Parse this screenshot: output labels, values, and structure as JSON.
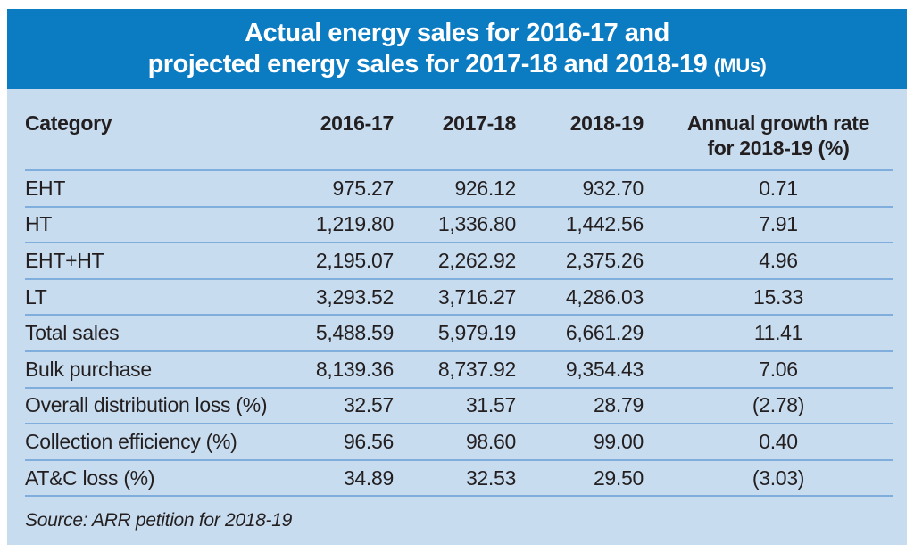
{
  "title": {
    "line1": "Actual energy sales for 2016-17 and",
    "line2": "projected energy sales for 2017-18 and 2018-19",
    "unit_suffix": "(MUs)"
  },
  "header": {
    "category": "Category",
    "y2016_17": "2016-17",
    "y2017_18": "2017-18",
    "y2018_19": "2018-19",
    "growth_line1": "Annual growth rate",
    "growth_line2": "for 2018-19 (%)"
  },
  "rows": [
    {
      "category": "EHT",
      "y2016_17": "975.27",
      "y2017_18": "926.12",
      "y2018_19": "932.70",
      "growth": "0.71"
    },
    {
      "category": "HT",
      "y2016_17": "1,219.80",
      "y2017_18": "1,336.80",
      "y2018_19": "1,442.56",
      "growth": "7.91"
    },
    {
      "category": "EHT+HT",
      "y2016_17": "2,195.07",
      "y2017_18": "2,262.92",
      "y2018_19": "2,375.26",
      "growth": "4.96"
    },
    {
      "category": "LT",
      "y2016_17": "3,293.52",
      "y2017_18": "3,716.27",
      "y2018_19": "4,286.03",
      "growth": "15.33"
    },
    {
      "category": "Total sales",
      "y2016_17": "5,488.59",
      "y2017_18": "5,979.19",
      "y2018_19": "6,661.29",
      "growth": "11.41"
    },
    {
      "category": "Bulk purchase",
      "y2016_17": "8,139.36",
      "y2017_18": "8,737.92",
      "y2018_19": "9,354.43",
      "growth": "7.06"
    },
    {
      "category": "Overall distribution loss (%)",
      "y2016_17": "32.57",
      "y2017_18": "31.57",
      "y2018_19": "28.79",
      "growth": "(2.78)"
    },
    {
      "category": "Collection efficiency (%)",
      "y2016_17": "96.56",
      "y2017_18": "98.60",
      "y2018_19": "99.00",
      "growth": "0.40"
    },
    {
      "category": "AT&C loss (%)",
      "y2016_17": "34.89",
      "y2017_18": "32.53",
      "y2018_19": "29.50",
      "growth": "(3.03)"
    }
  ],
  "source": "Source: ARR petition for 2018-19",
  "colors": {
    "banner_blue": "#0b7bc2",
    "panel_blue": "#c8dcef",
    "line_blue": "#7faedd",
    "text": "#231f20",
    "title_text": "#ffffff"
  },
  "chart_data": {
    "type": "table",
    "title": "Actual energy sales for 2016-17 and projected energy sales for 2017-18 and 2018-19 (MUs)",
    "columns": [
      "Category",
      "2016-17",
      "2017-18",
      "2018-19",
      "Annual growth rate for 2018-19 (%)"
    ],
    "rows": [
      [
        "EHT",
        975.27,
        926.12,
        932.7,
        0.71
      ],
      [
        "HT",
        1219.8,
        1336.8,
        1442.56,
        7.91
      ],
      [
        "EHT+HT",
        2195.07,
        2262.92,
        2375.26,
        4.96
      ],
      [
        "LT",
        3293.52,
        3716.27,
        4286.03,
        15.33
      ],
      [
        "Total sales",
        5488.59,
        5979.19,
        6661.29,
        11.41
      ],
      [
        "Bulk purchase",
        8139.36,
        8737.92,
        9354.43,
        7.06
      ],
      [
        "Overall distribution loss (%)",
        32.57,
        31.57,
        28.79,
        -2.78
      ],
      [
        "Collection efficiency (%)",
        96.56,
        98.6,
        99.0,
        0.4
      ],
      [
        "AT&C loss (%)",
        34.89,
        32.53,
        29.5,
        -3.03
      ]
    ],
    "notes": "Negative growth values shown in parentheses",
    "source": "Source: ARR petition for 2018-19"
  }
}
